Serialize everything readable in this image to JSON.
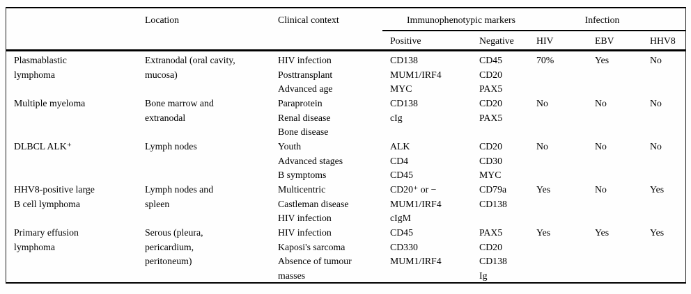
{
  "table": {
    "header": {
      "location": "Location",
      "clinical_context": "Clinical context",
      "immunophenotypic_markers": "Immunophenotypic markers",
      "infection": "Infection",
      "positive": "Positive",
      "negative": "Negative",
      "hiv": "HIV",
      "ebv": "EBV",
      "hhv8": "HHV8"
    },
    "rows": [
      {
        "name": "Plasmablastic\nlymphoma",
        "location": "Extranodal (oral cavity,\nmucosa)",
        "clinical_context": "HIV infection\nPosttransplant\nAdvanced age",
        "positive": "CD138\nMUM1/IRF4\nMYC",
        "negative": "CD45\nCD20\nPAX5",
        "hiv": "70%",
        "ebv": "Yes",
        "hhv8": "No"
      },
      {
        "name": "Multiple myeloma",
        "location": "Bone marrow and\nextranodal",
        "clinical_context": "Paraprotein\nRenal disease\nBone disease",
        "positive": "CD138\ncIg",
        "negative": "CD20\nPAX5",
        "hiv": "No",
        "ebv": "No",
        "hhv8": "No"
      },
      {
        "name": "DLBCL ALK⁺",
        "location": "Lymph nodes",
        "clinical_context": "Youth\nAdvanced stages\nB symptoms",
        "positive": "ALK\nCD4\nCD45",
        "negative": "CD20\nCD30\nMYC",
        "hiv": "No",
        "ebv": "No",
        "hhv8": "No"
      },
      {
        "name": "HHV8-positive large\nB cell lymphoma",
        "location": "Lymph nodes and\nspleen",
        "clinical_context": "Multicentric\nCastleman disease\nHIV infection",
        "positive": "CD20⁺ or −\nMUM1/IRF4\ncIgM",
        "negative": "CD79a\nCD138",
        "hiv": "Yes",
        "ebv": "No",
        "hhv8": "Yes"
      },
      {
        "name": "Primary effusion\nlymphoma",
        "location": "Serous (pleura,\npericardium,\nperitoneum)",
        "clinical_context": "HIV infection\nKaposi's sarcoma\nAbsence of tumour\nmasses",
        "positive": "CD45\nCD330\nMUM1/IRF4",
        "negative": "PAX5\nCD20\nCD138\nIg",
        "hiv": "Yes",
        "ebv": "Yes",
        "hhv8": "Yes"
      }
    ]
  }
}
